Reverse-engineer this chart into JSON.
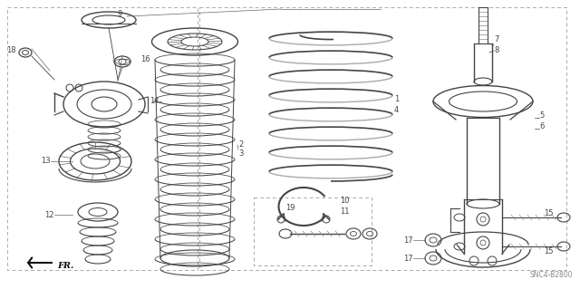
{
  "bg_color": "#ffffff",
  "line_color": "#444444",
  "dashed_color": "#aaaaaa",
  "fig_width": 6.4,
  "fig_height": 3.19,
  "dpi": 100,
  "watermark": "SNC4-B2800",
  "fr_label": "FR."
}
